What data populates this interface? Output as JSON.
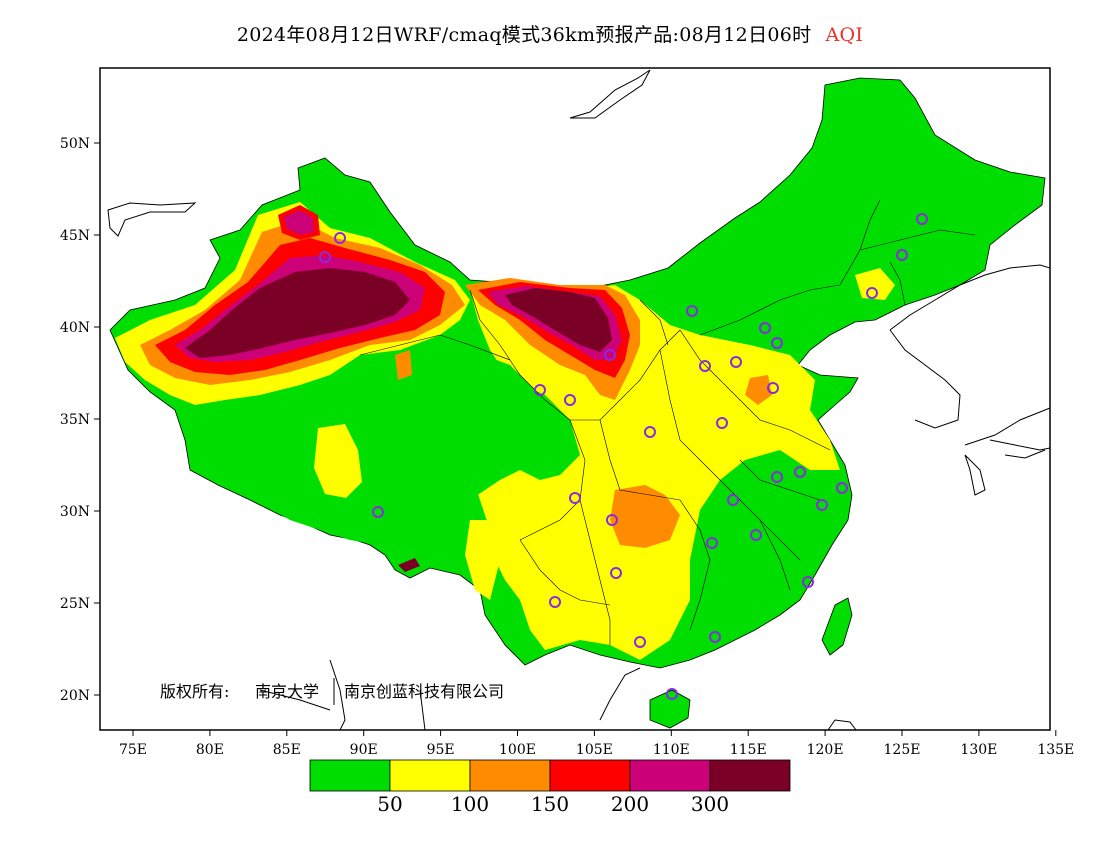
{
  "title": {
    "main": "2024年08月12日WRF/cmaq模式36km预报产品:08月12日06时",
    "variable": "AQI"
  },
  "axes": {
    "lon_ticks": [
      "75E",
      "80E",
      "85E",
      "90E",
      "95E",
      "100E",
      "105E",
      "110E",
      "115E",
      "120E",
      "125E",
      "130E",
      "135E"
    ],
    "lat_ticks": [
      "50N",
      "45N",
      "40N",
      "35N",
      "30N",
      "25N",
      "20N"
    ]
  },
  "copyright": {
    "label": "版权所有:",
    "org1": "南京大学",
    "org2": "南京创蓝科技有限公司"
  },
  "legend": {
    "colors": [
      "#00dd00",
      "#ffff00",
      "#ff8c00",
      "#ff0000",
      "#cc0077",
      "#7a0026"
    ],
    "labels": [
      "50",
      "100",
      "150",
      "200",
      "300"
    ]
  },
  "stations": {
    "marker_color": "#8a2be2"
  }
}
